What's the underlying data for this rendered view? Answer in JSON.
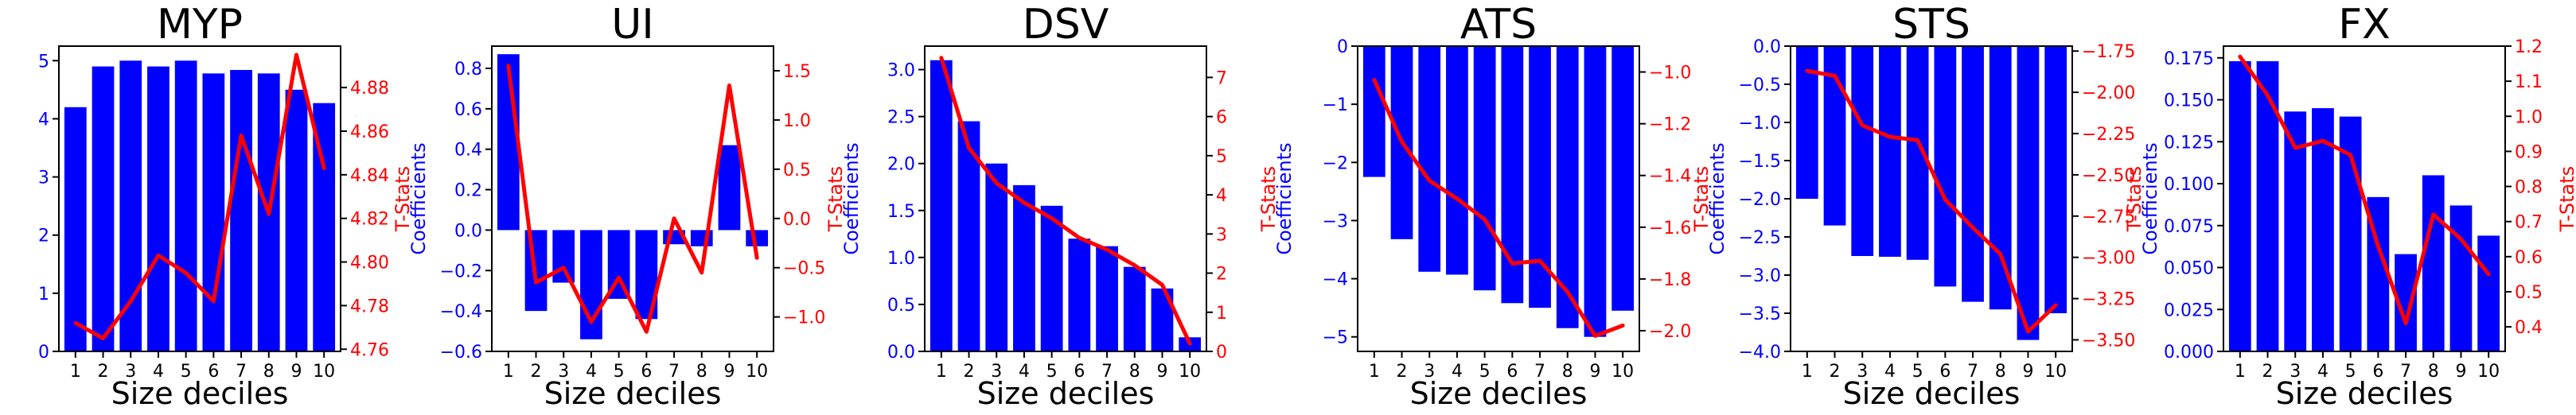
{
  "colors": {
    "bar": "#0000ff",
    "line": "#ff0000",
    "axis": "#000000"
  },
  "chart_data": [
    {
      "type": "bar",
      "title": "MYP",
      "xlabel": "Size deciles",
      "ylabel": "Coefficients",
      "y2label": "T-Stats",
      "categories": [
        "1",
        "2",
        "3",
        "4",
        "5",
        "6",
        "7",
        "8",
        "9",
        "10"
      ],
      "values": [
        4.2,
        4.9,
        5.0,
        4.9,
        5.0,
        4.78,
        4.84,
        4.78,
        4.5,
        4.27
      ],
      "ylim": [
        0,
        5.25
      ],
      "yticks": [
        0,
        1,
        2,
        3,
        4,
        5
      ],
      "ytick_labels": [
        "0",
        "1",
        "2",
        "3",
        "4",
        "5"
      ],
      "tstats": [
        4.772,
        4.765,
        4.782,
        4.803,
        4.795,
        4.782,
        4.858,
        4.822,
        4.895,
        4.843
      ],
      "y2lim": [
        4.759,
        4.899
      ],
      "y2ticks": [
        4.76,
        4.78,
        4.8,
        4.82,
        4.84,
        4.86,
        4.88
      ],
      "y2tick_labels": [
        "4.76",
        "4.78",
        "4.80",
        "4.82",
        "4.84",
        "4.86",
        "4.88"
      ]
    },
    {
      "type": "bar",
      "title": "UI",
      "xlabel": "Size deciles",
      "ylabel": "Coefficients",
      "y2label": "T-Stats",
      "categories": [
        "1",
        "2",
        "3",
        "4",
        "5",
        "6",
        "7",
        "8",
        "9",
        "10"
      ],
      "values": [
        0.87,
        -0.4,
        -0.26,
        -0.54,
        -0.34,
        -0.44,
        -0.07,
        -0.08,
        0.42,
        -0.08
      ],
      "ylim": [
        -0.6,
        0.91
      ],
      "yticks": [
        -0.6,
        -0.4,
        -0.2,
        0.0,
        0.2,
        0.4,
        0.6,
        0.8
      ],
      "ytick_labels": [
        "−0.6",
        "−0.4",
        "−0.2",
        "0.0",
        "0.2",
        "0.4",
        "0.6",
        "0.8"
      ],
      "tstats": [
        1.55,
        -0.65,
        -0.5,
        -1.05,
        -0.6,
        -1.15,
        0.0,
        -0.55,
        1.35,
        -0.4
      ],
      "y2lim": [
        -1.35,
        1.75
      ],
      "y2ticks": [
        -1.0,
        -0.5,
        0.0,
        0.5,
        1.0,
        1.5
      ],
      "y2tick_labels": [
        "−1.0",
        "−0.5",
        "0.0",
        "0.5",
        "1.0",
        "1.5"
      ]
    },
    {
      "type": "bar",
      "title": "DSV",
      "xlabel": "Size deciles",
      "ylabel": "Coefficients",
      "y2label": "T-Stats",
      "categories": [
        "1",
        "2",
        "3",
        "4",
        "5",
        "6",
        "7",
        "8",
        "9",
        "10"
      ],
      "values": [
        3.1,
        2.45,
        2.0,
        1.77,
        1.55,
        1.2,
        1.12,
        0.9,
        0.67,
        0.15
      ],
      "ylim": [
        0,
        3.25
      ],
      "yticks": [
        0.0,
        0.5,
        1.0,
        1.5,
        2.0,
        2.5,
        3.0
      ],
      "ytick_labels": [
        "0.0",
        "0.5",
        "1.0",
        "1.5",
        "2.0",
        "2.5",
        "3.0"
      ],
      "tstats": [
        7.5,
        5.2,
        4.3,
        3.8,
        3.4,
        2.9,
        2.6,
        2.2,
        1.7,
        0.2
      ],
      "y2lim": [
        0,
        7.8
      ],
      "y2ticks": [
        0,
        1,
        2,
        3,
        4,
        5,
        6,
        7
      ],
      "y2tick_labels": [
        "0",
        "1",
        "2",
        "3",
        "4",
        "5",
        "6",
        "7"
      ]
    },
    {
      "type": "bar",
      "title": "ATS",
      "xlabel": "Size deciles",
      "ylabel": "Coefficients",
      "y2label": "T-Stats",
      "categories": [
        "1",
        "2",
        "3",
        "4",
        "5",
        "6",
        "7",
        "8",
        "9",
        "10"
      ],
      "values": [
        -2.25,
        -3.32,
        -3.88,
        -3.93,
        -4.2,
        -4.42,
        -4.5,
        -4.85,
        -5.0,
        -4.55
      ],
      "ylim": [
        -5.25,
        0
      ],
      "yticks": [
        -5,
        -4,
        -3,
        -2,
        -1,
        0
      ],
      "ytick_labels": [
        "−5",
        "−4",
        "−3",
        "−2",
        "−1",
        "0"
      ],
      "tstats": [
        -1.03,
        -1.27,
        -1.42,
        -1.49,
        -1.57,
        -1.74,
        -1.73,
        -1.85,
        -2.02,
        -1.98
      ],
      "y2lim": [
        -2.08,
        -0.9
      ],
      "y2ticks": [
        -2.0,
        -1.8,
        -1.6,
        -1.4,
        -1.2,
        -1.0
      ],
      "y2tick_labels": [
        "−2.0",
        "−1.8",
        "−1.6",
        "−1.4",
        "−1.2",
        "−1.0"
      ]
    },
    {
      "type": "bar",
      "title": "STS",
      "xlabel": "Size deciles",
      "ylabel": "Coefficients",
      "y2label": "T-Stats",
      "categories": [
        "1",
        "2",
        "3",
        "4",
        "5",
        "6",
        "7",
        "8",
        "9",
        "10"
      ],
      "values": [
        -2.0,
        -2.35,
        -2.75,
        -2.76,
        -2.8,
        -3.15,
        -3.35,
        -3.45,
        -3.85,
        -3.5
      ],
      "ylim": [
        -4.0,
        0
      ],
      "yticks": [
        -4.0,
        -3.5,
        -3.0,
        -2.5,
        -2.0,
        -1.5,
        -1.0,
        -0.5,
        0.0
      ],
      "ytick_labels": [
        "−4.0",
        "−3.5",
        "−3.0",
        "−2.5",
        "−2.0",
        "−1.5",
        "−1.0",
        "−0.5",
        "0.0"
      ],
      "tstats": [
        -1.87,
        -1.9,
        -2.2,
        -2.27,
        -2.29,
        -2.65,
        -2.82,
        -2.98,
        -3.45,
        -3.29
      ],
      "y2lim": [
        -3.57,
        -1.72
      ],
      "y2ticks": [
        -3.5,
        -3.25,
        -3.0,
        -2.75,
        -2.5,
        -2.25,
        -2.0,
        -1.75
      ],
      "y2tick_labels": [
        "−3.50",
        "−3.25",
        "−3.00",
        "−2.75",
        "−2.50",
        "−2.25",
        "−2.00",
        "−1.75"
      ]
    },
    {
      "type": "bar",
      "title": "FX",
      "xlabel": "Size deciles",
      "ylabel": "Coefficients",
      "y2label": "T-Stats",
      "categories": [
        "1",
        "2",
        "3",
        "4",
        "5",
        "6",
        "7",
        "8",
        "9",
        "10"
      ],
      "values": [
        0.173,
        0.173,
        0.143,
        0.145,
        0.14,
        0.092,
        0.058,
        0.105,
        0.087,
        0.069
      ],
      "ylim": [
        0,
        0.182
      ],
      "yticks": [
        0.0,
        0.025,
        0.05,
        0.075,
        0.1,
        0.125,
        0.15,
        0.175
      ],
      "ytick_labels": [
        "0.000",
        "0.025",
        "0.050",
        "0.075",
        "0.100",
        "0.125",
        "0.150",
        "0.175"
      ],
      "tstats": [
        1.17,
        1.06,
        0.91,
        0.93,
        0.89,
        0.63,
        0.41,
        0.72,
        0.65,
        0.55
      ],
      "y2lim": [
        0.33,
        1.2
      ],
      "y2ticks": [
        0.4,
        0.5,
        0.6,
        0.7,
        0.8,
        0.9,
        1.0,
        1.1,
        1.2
      ],
      "y2tick_labels": [
        "0.4",
        "0.5",
        "0.6",
        "0.7",
        "0.8",
        "0.9",
        "1.0",
        "1.1",
        "1.2"
      ]
    }
  ]
}
